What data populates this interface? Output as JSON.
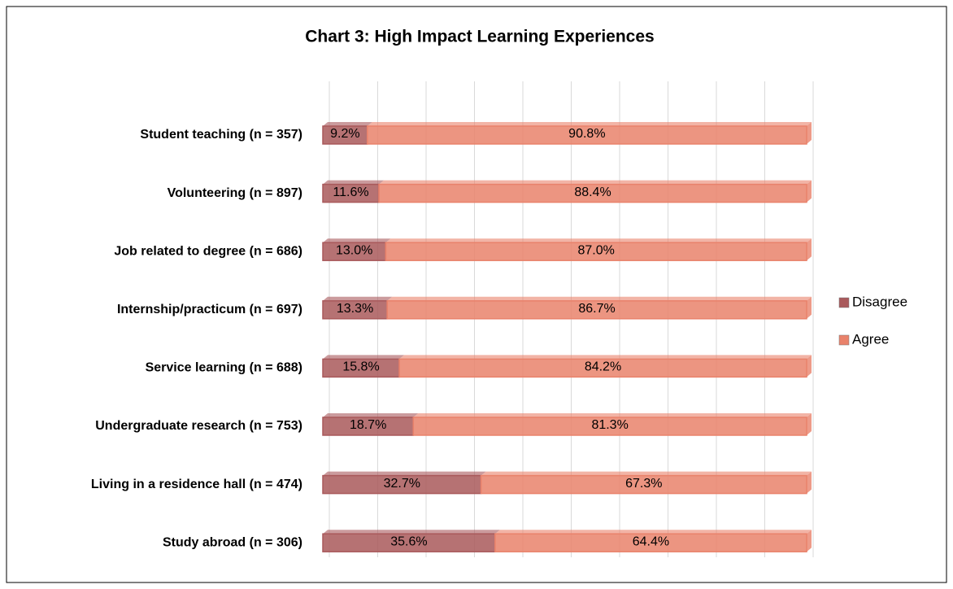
{
  "chart_data": {
    "type": "stacked_barh",
    "title": "Chart 3: High Impact Learning Experiences",
    "categories": [
      "Student teaching (n = 357)",
      "Volunteering (n = 897)",
      "Job related to degree (n = 686)",
      "Internship/practicum (n = 697)",
      "Service learning (n = 688)",
      "Undergraduate research (n = 753)",
      "Living in a residence hall (n = 474)",
      "Study abroad (n = 306)"
    ],
    "series": [
      {
        "name": "Disagree",
        "color": "#a9595b",
        "values": [
          9.2,
          11.6,
          13.0,
          13.3,
          15.8,
          18.7,
          32.7,
          35.6
        ],
        "value_labels": [
          "9.2%",
          "11.6%",
          "13.0%",
          "13.3%",
          "15.8%",
          "18.7%",
          "32.7%",
          "35.6%"
        ]
      },
      {
        "name": "Agree",
        "color": "#e9826b",
        "values": [
          90.8,
          88.4,
          87.0,
          86.7,
          84.2,
          81.3,
          67.3,
          64.4
        ],
        "value_labels": [
          "90.8%",
          "88.4%",
          "87.0%",
          "86.7%",
          "84.2%",
          "81.3%",
          "67.3%",
          "64.4%"
        ]
      }
    ],
    "xlim": [
      0,
      100
    ],
    "xticks": [
      0,
      10,
      20,
      30,
      40,
      50,
      60,
      70,
      80,
      90,
      100
    ],
    "grid": true,
    "legend": "right"
  }
}
